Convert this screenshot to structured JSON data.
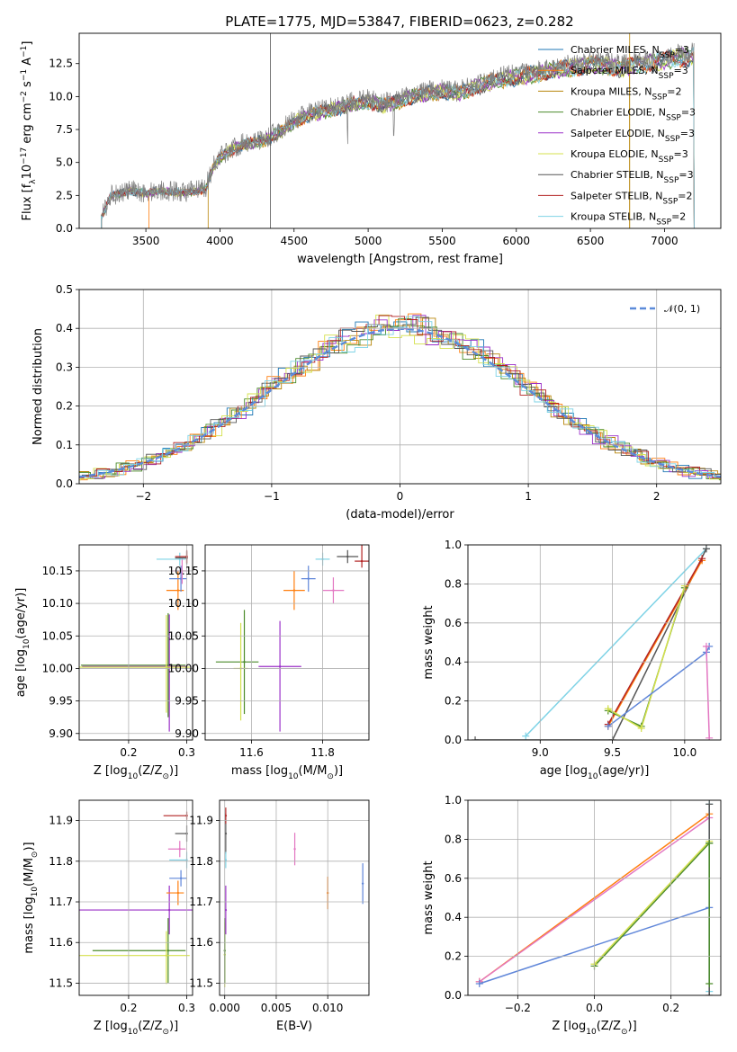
{
  "figure": {
    "title": "PLATE=1775, MJD=53847, FIBERID=0623, z=0.282"
  },
  "colors": {
    "chabrier_miles": "#1f77b4",
    "salpeter_miles": "#ff7f0e",
    "kroupa_miles": "#b8860b",
    "chabrier_elodie": "#4c8c2b",
    "salpeter_elodie": "#9b30c8",
    "kroupa_elodie": "#d4e04c",
    "chabrier_stelib": "#555555",
    "salpeter_stelib": "#b22222",
    "kroupa_stelib": "#7fd3e6",
    "data_gray": "#808080",
    "normal_curve": "#5b8bd9",
    "pink": "#e377c2",
    "blue2": "#5f86d9"
  },
  "chart_data": [
    {
      "id": "spectrum",
      "type": "line",
      "title": "PLATE=1775, MJD=53847, FIBERID=0623, z=0.282",
      "xlabel": "wavelength [Angstrom, rest frame]",
      "ylabel_parts": [
        "Flux [f",
        "λ",
        "10",
        "−17",
        " erg cm",
        "−2",
        " s",
        "−1",
        " A",
        "−1",
        "]"
      ],
      "xlim": [
        3050,
        7380
      ],
      "ylim": [
        0,
        14.8
      ],
      "xticks": [
        3500,
        4000,
        4500,
        5000,
        5500,
        6000,
        6500,
        7000
      ],
      "yticks": [
        0.0,
        2.5,
        5.0,
        7.5,
        10.0,
        12.5
      ],
      "grid": false,
      "legend_position": "top-right",
      "legend": [
        {
          "label": "Chabrier MILES, N",
          "sub": "SSP",
          "suffix": "=3",
          "color_key": "chabrier_miles"
        },
        {
          "label": "Salpeter MILES, N",
          "sub": "SSP",
          "suffix": "=3",
          "color_key": "salpeter_miles"
        },
        {
          "label": "Kroupa MILES, N",
          "sub": "SSP",
          "suffix": "=2",
          "color_key": "kroupa_miles"
        },
        {
          "label": "Chabrier ELODIE, N",
          "sub": "SSP",
          "suffix": "=3",
          "color_key": "chabrier_elodie"
        },
        {
          "label": "Salpeter ELODIE, N",
          "sub": "SSP",
          "suffix": "=3",
          "color_key": "salpeter_elodie"
        },
        {
          "label": "Kroupa ELODIE, N",
          "sub": "SSP",
          "suffix": "=3",
          "color_key": "kroupa_elodie"
        },
        {
          "label": "Chabrier STELIB, N",
          "sub": "SSP",
          "suffix": "=3",
          "color_key": "chabrier_stelib"
        },
        {
          "label": "Salpeter STELIB, N",
          "sub": "SSP",
          "suffix": "=2",
          "color_key": "salpeter_stelib"
        },
        {
          "label": "Kroupa STELIB, N",
          "sub": "SSP",
          "suffix": "=2",
          "color_key": "kroupa_stelib"
        }
      ],
      "data_envelope": {
        "x": [
          3200,
          3260,
          3400,
          3500,
          3600,
          3700,
          3800,
          3900,
          3950,
          4000,
          4100,
          4200,
          4300,
          4400,
          4500,
          4600,
          4700,
          4800,
          4900,
          5000,
          5100,
          5200,
          5300,
          5400,
          5500,
          5600,
          5700,
          5800,
          5900,
          6000,
          6100,
          6200,
          6300,
          6400,
          6500,
          6600,
          6700,
          6800,
          6900,
          7000,
          7100,
          7200
        ],
        "y": [
          0.8,
          2.5,
          2.9,
          2.7,
          2.9,
          2.8,
          2.8,
          3.0,
          4.6,
          5.5,
          6.2,
          6.6,
          6.8,
          7.4,
          8.2,
          8.8,
          9.0,
          9.3,
          9.6,
          9.8,
          9.5,
          9.8,
          10.2,
          10.4,
          10.6,
          10.4,
          10.8,
          11.2,
          11.5,
          11.7,
          11.9,
          12.1,
          12.3,
          12.5,
          12.6,
          12.6,
          12.4,
          12.6,
          12.8,
          13.0,
          13.2,
          13.3
        ]
      },
      "vertical_spikes": [
        4340,
        6765
      ]
    },
    {
      "id": "residual-hist",
      "type": "line",
      "xlabel": "(data-model)/error",
      "ylabel": "Normed distribution",
      "xlim": [
        -2.5,
        2.5
      ],
      "ylim": [
        0,
        0.5
      ],
      "xticks": [
        -2,
        -1,
        0,
        1,
        2
      ],
      "yticks": [
        0.0,
        0.1,
        0.2,
        0.3,
        0.4,
        0.5
      ],
      "grid": true,
      "legend_position": "top-right",
      "legend": [
        {
          "label": "𝒩(0, 1)",
          "color_key": "normal_curve"
        }
      ],
      "normal": {
        "mean": 0,
        "sigma": 1
      },
      "bin_width": 0.1
    },
    {
      "id": "age-vs-Z",
      "type": "scatter",
      "xlabel_parts": [
        "Z [log",
        "10",
        "(Z/Z",
        "⊙",
        ")]"
      ],
      "ylabel_parts": [
        "age  [log",
        "10",
        "(age/yr)]"
      ],
      "xlim": [
        0.115,
        0.31
      ],
      "ylim": [
        9.89,
        10.19
      ],
      "xticks": [
        0.2,
        0.3
      ],
      "yticks": [
        9.9,
        9.95,
        10.0,
        10.05,
        10.1,
        10.15
      ],
      "grid": true,
      "points": [
        {
          "x": 0.268,
          "y": 10.005,
          "xerr": [
            0.15,
            0.03
          ],
          "yerr": [
            0.08,
            0.08
          ],
          "color_key": "chabrier_elodie"
        },
        {
          "x": 0.27,
          "y": 10.003,
          "xerr": [
            0.15,
            0.03
          ],
          "yerr": [
            0.1,
            0.08
          ],
          "color_key": "salpeter_elodie"
        },
        {
          "x": 0.265,
          "y": 10.002,
          "xerr": [
            0.15,
            0.04
          ],
          "yerr": [
            0.07,
            0.08
          ],
          "color_key": "kroupa_elodie"
        },
        {
          "x": 0.285,
          "y": 10.12,
          "xerr": [
            0.02,
            0.01
          ],
          "yerr": [
            0.03,
            0.03
          ],
          "color_key": "salpeter_miles"
        },
        {
          "x": 0.29,
          "y": 10.138,
          "xerr": [
            0.02,
            0.01
          ],
          "yerr": [
            0.02,
            0.02
          ],
          "color_key": "blue2"
        },
        {
          "x": 0.292,
          "y": 10.15,
          "xerr": [
            0.02,
            0.01
          ],
          "yerr": [
            0.02,
            0.02
          ],
          "color_key": "pink"
        },
        {
          "x": 0.288,
          "y": 10.168,
          "xerr": [
            0.04,
            0.01
          ],
          "yerr": [
            0.01,
            0.01
          ],
          "color_key": "kroupa_stelib"
        },
        {
          "x": 0.3,
          "y": 10.17,
          "xerr": [
            0.02,
            0.0
          ],
          "yerr": [
            0.01,
            0.01
          ],
          "color_key": "chabrier_stelib"
        },
        {
          "x": 0.3,
          "y": 10.172,
          "xerr": [
            0.02,
            0.0
          ],
          "yerr": [
            0.01,
            0.01
          ],
          "color_key": "salpeter_stelib"
        }
      ]
    },
    {
      "id": "age-vs-mass",
      "type": "scatter",
      "xlabel_parts": [
        "mass [log",
        "10",
        "(M/M",
        "⊙",
        ")]"
      ],
      "ylabel": "",
      "xlim": [
        11.47,
        11.93
      ],
      "ylim": [
        9.89,
        10.19
      ],
      "xticks": [
        11.6,
        11.8
      ],
      "yticks": [
        9.9,
        9.95,
        10.0,
        10.05,
        10.1,
        10.15
      ],
      "grid": true,
      "points": [
        {
          "x": 11.58,
          "y": 10.01,
          "xerr": [
            0.08,
            0.04
          ],
          "yerr": [
            0.08,
            0.08
          ],
          "color_key": "chabrier_elodie"
        },
        {
          "x": 11.57,
          "y": 10.0,
          "xerr": [
            0.02,
            0.02
          ],
          "yerr": [
            0.08,
            0.07
          ],
          "color_key": "kroupa_elodie"
        },
        {
          "x": 11.68,
          "y": 10.003,
          "xerr": [
            0.06,
            0.06
          ],
          "yerr": [
            0.1,
            0.07
          ],
          "color_key": "salpeter_elodie"
        },
        {
          "x": 11.72,
          "y": 10.12,
          "xerr": [
            0.03,
            0.03
          ],
          "yerr": [
            0.03,
            0.03
          ],
          "color_key": "salpeter_miles"
        },
        {
          "x": 11.76,
          "y": 10.138,
          "xerr": [
            0.02,
            0.02
          ],
          "yerr": [
            0.02,
            0.02
          ],
          "color_key": "blue2"
        },
        {
          "x": 11.83,
          "y": 10.12,
          "xerr": [
            0.03,
            0.03
          ],
          "yerr": [
            0.02,
            0.02
          ],
          "color_key": "pink"
        },
        {
          "x": 11.8,
          "y": 10.168,
          "xerr": [
            0.02,
            0.02
          ],
          "yerr": [
            0.01,
            0.01
          ],
          "color_key": "kroupa_stelib"
        },
        {
          "x": 11.87,
          "y": 10.172,
          "xerr": [
            0.03,
            0.03
          ],
          "yerr": [
            0.01,
            0.01
          ],
          "color_key": "chabrier_stelib"
        },
        {
          "x": 11.91,
          "y": 10.165,
          "xerr": [
            0.02,
            0.02
          ],
          "yerr": [
            0.01,
            0.03
          ],
          "color_key": "salpeter_stelib"
        }
      ]
    },
    {
      "id": "massweight-vs-age",
      "type": "line",
      "xlabel_parts": [
        "age  [log",
        "10",
        "(age/yr)]"
      ],
      "ylabel": "mass weight",
      "xlim": [
        8.5,
        10.25
      ],
      "ylim": [
        0,
        1.0
      ],
      "xticks": [
        9.0,
        9.5,
        10.0
      ],
      "yticks": [
        0.0,
        0.2,
        0.4,
        0.6,
        0.8,
        1.0
      ],
      "grid": true,
      "series": [
        {
          "color_key": "kroupa_stelib",
          "x": [
            8.9,
            10.15
          ],
          "y": [
            0.02,
            0.98
          ]
        },
        {
          "color_key": "chabrier_stelib",
          "x": [
            8.55,
            9.5,
            10.15
          ],
          "y": [
            0.0,
            0.0,
            0.98
          ]
        },
        {
          "color_key": "salpeter_miles",
          "x": [
            9.47,
            10.12
          ],
          "y": [
            0.07,
            0.92
          ]
        },
        {
          "color_key": "salpeter_stelib",
          "x": [
            9.47,
            10.12
          ],
          "y": [
            0.08,
            0.93
          ]
        },
        {
          "color_key": "chabrier_elodie",
          "x": [
            9.47,
            9.7,
            10.0
          ],
          "y": [
            0.15,
            0.07,
            0.78
          ]
        },
        {
          "color_key": "kroupa_elodie",
          "x": [
            9.47,
            9.7,
            10.0
          ],
          "y": [
            0.16,
            0.06,
            0.79
          ]
        },
        {
          "color_key": "blue2",
          "x": [
            9.47,
            10.15,
            10.17
          ],
          "y": [
            0.07,
            0.45,
            0.48
          ]
        },
        {
          "color_key": "pink",
          "x": [
            10.15,
            10.17
          ],
          "y": [
            0.48,
            0.01
          ]
        }
      ]
    },
    {
      "id": "mass-vs-Z",
      "type": "scatter",
      "xlabel_parts": [
        "Z [log",
        "10",
        "(Z/Z",
        "⊙",
        ")]"
      ],
      "ylabel_parts": [
        "mass [log",
        "10",
        "(M/M",
        "⊙",
        ")]"
      ],
      "xlim": [
        0.115,
        0.31
      ],
      "ylim": [
        11.47,
        11.95
      ],
      "xticks": [
        0.2,
        0.3
      ],
      "yticks": [
        11.5,
        11.6,
        11.7,
        11.8,
        11.9
      ],
      "grid": true,
      "points": [
        {
          "x": 0.268,
          "y": 11.58,
          "xerr": [
            0.13,
            0.03
          ],
          "yerr": [
            0.08,
            0.08
          ],
          "color_key": "chabrier_elodie"
        },
        {
          "x": 0.265,
          "y": 11.568,
          "xerr": [
            0.15,
            0.04
          ],
          "yerr": [
            0.07,
            0.06
          ],
          "color_key": "kroupa_elodie"
        },
        {
          "x": 0.27,
          "y": 11.68,
          "xerr": [
            0.16,
            0.04
          ],
          "yerr": [
            0.06,
            0.06
          ],
          "color_key": "salpeter_elodie"
        },
        {
          "x": 0.285,
          "y": 11.722,
          "xerr": [
            0.02,
            0.01
          ],
          "yerr": [
            0.03,
            0.03
          ],
          "color_key": "salpeter_miles"
        },
        {
          "x": 0.29,
          "y": 11.758,
          "xerr": [
            0.02,
            0.01
          ],
          "yerr": [
            0.02,
            0.02
          ],
          "color_key": "blue2"
        },
        {
          "x": 0.288,
          "y": 11.83,
          "xerr": [
            0.02,
            0.01
          ],
          "yerr": [
            0.02,
            0.02
          ],
          "color_key": "pink"
        },
        {
          "x": 0.3,
          "y": 11.803,
          "xerr": [
            0.03,
            0.0
          ],
          "yerr": [
            0.02,
            0.02
          ],
          "color_key": "kroupa_stelib"
        },
        {
          "x": 0.3,
          "y": 11.868,
          "xerr": [
            0.02,
            0.0
          ],
          "yerr": [
            0.02,
            0.02
          ],
          "color_key": "chabrier_stelib"
        },
        {
          "x": 0.3,
          "y": 11.912,
          "xerr": [
            0.04,
            0.0
          ],
          "yerr": [
            0.01,
            0.01
          ],
          "color_key": "salpeter_stelib"
        }
      ]
    },
    {
      "id": "mass-vs-ebv",
      "type": "scatter",
      "xlabel": "E(B-V)",
      "ylabel": "",
      "xlim": [
        -0.0005,
        0.014
      ],
      "ylim": [
        11.47,
        11.95
      ],
      "xticks": [
        0.0,
        0.005,
        0.01
      ],
      "yticks": [
        11.5,
        11.6,
        11.7,
        11.8,
        11.9
      ],
      "grid": true,
      "points": [
        {
          "x": 0.0,
          "y": 11.57,
          "yerr": [
            0.08,
            0.08
          ],
          "color_key": "kroupa_elodie"
        },
        {
          "x": 0.0,
          "y": 11.58,
          "yerr": [
            0.08,
            0.08
          ],
          "color_key": "chabrier_elodie"
        },
        {
          "x": 0.0001,
          "y": 11.68,
          "yerr": [
            0.06,
            0.06
          ],
          "color_key": "salpeter_elodie"
        },
        {
          "x": 0.0001,
          "y": 11.868,
          "yerr": [
            0.05,
            0.05
          ],
          "color_key": "chabrier_stelib"
        },
        {
          "x": 0.0001,
          "y": 11.912,
          "yerr": [
            0.02,
            0.02
          ],
          "color_key": "salpeter_stelib"
        },
        {
          "x": 0.0001,
          "y": 11.803,
          "yerr": [
            0.02,
            0.02
          ],
          "color_key": "kroupa_stelib"
        },
        {
          "x": 0.0068,
          "y": 11.83,
          "yerr": [
            0.04,
            0.04
          ],
          "color_key": "pink"
        },
        {
          "x": 0.01,
          "y": 11.722,
          "yerr": [
            0.04,
            0.04
          ],
          "color_key": "salpeter_miles"
        },
        {
          "x": 0.0134,
          "y": 11.745,
          "yerr": [
            0.05,
            0.05
          ],
          "color_key": "blue2"
        }
      ]
    },
    {
      "id": "massweight-vs-Z",
      "type": "line",
      "xlabel_parts": [
        "Z [log",
        "10",
        "(Z/Z",
        "⊙",
        ")]"
      ],
      "ylabel": "mass weight",
      "xlim": [
        -0.33,
        0.33
      ],
      "ylim": [
        0,
        1.0
      ],
      "xticks": [
        -0.2,
        0.0,
        0.2
      ],
      "yticks": [
        0.0,
        0.2,
        0.4,
        0.6,
        0.8,
        1.0
      ],
      "grid": true,
      "series": [
        {
          "color_key": "salpeter_miles",
          "x": [
            -0.3,
            0.3
          ],
          "y": [
            0.07,
            0.93
          ]
        },
        {
          "color_key": "pink",
          "x": [
            -0.3,
            0.3
          ],
          "y": [
            0.07,
            0.91
          ]
        },
        {
          "color_key": "blue2",
          "x": [
            -0.3,
            0.3
          ],
          "y": [
            0.06,
            0.45
          ]
        },
        {
          "color_key": "chabrier_elodie",
          "x": [
            0.0,
            0.3
          ],
          "y": [
            0.15,
            0.78
          ]
        },
        {
          "color_key": "kroupa_elodie",
          "x": [
            0.0,
            0.3
          ],
          "y": [
            0.16,
            0.79
          ]
        },
        {
          "color_key": "kroupa_stelib",
          "x": [
            0.3,
            0.3
          ],
          "y": [
            0.02,
            0.98
          ]
        },
        {
          "color_key": "chabrier_stelib",
          "x": [
            0.3,
            0.3
          ],
          "y": [
            0.0,
            0.98
          ]
        },
        {
          "color_key": "chabrier_elodie",
          "x": [
            0.3,
            0.3
          ],
          "y": [
            0.06,
            0.78
          ]
        }
      ]
    }
  ]
}
